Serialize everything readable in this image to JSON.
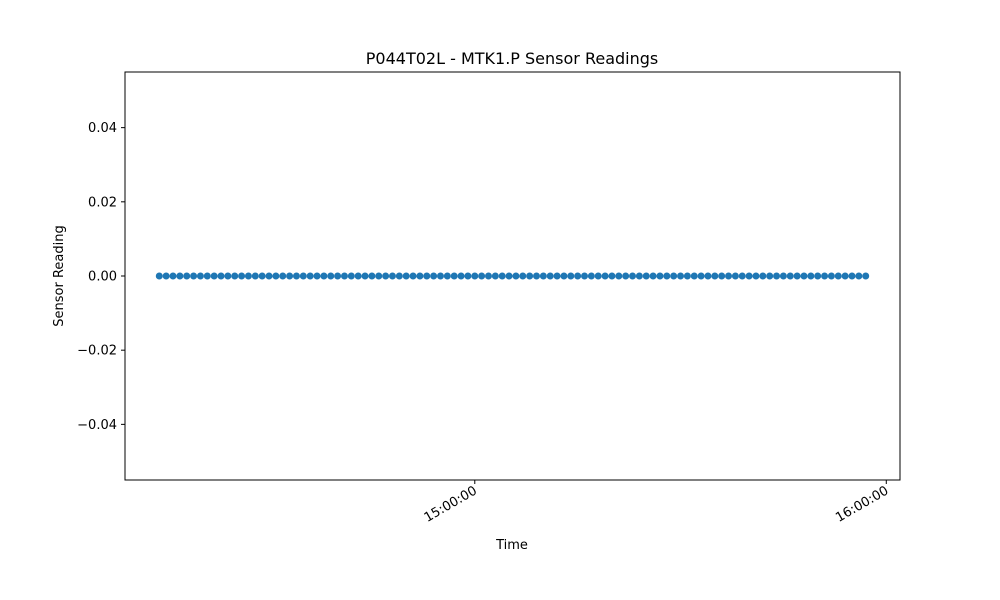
{
  "chart_data": {
    "type": "scatter",
    "title": "P044T02L - MTK1.P Sensor Readings",
    "xlabel": "Time",
    "ylabel": "Sensor Reading",
    "x_range": [
      "14:09:00",
      "16:02:00"
    ],
    "ylim": [
      -0.055,
      0.055
    ],
    "xticks": [
      "15:00:00",
      "16:00:00"
    ],
    "yticks": [
      0.04,
      0.02,
      0.0,
      -0.02,
      -0.04
    ],
    "ytick_labels": [
      "0.04",
      "0.02",
      "0.00",
      "−0.02",
      "−0.04"
    ],
    "grid": false,
    "series": [
      {
        "color": "#1f77b4",
        "x_start": "14:14:00",
        "x_end": "15:57:00",
        "interval_minutes": 1,
        "value": 0.0
      }
    ]
  }
}
